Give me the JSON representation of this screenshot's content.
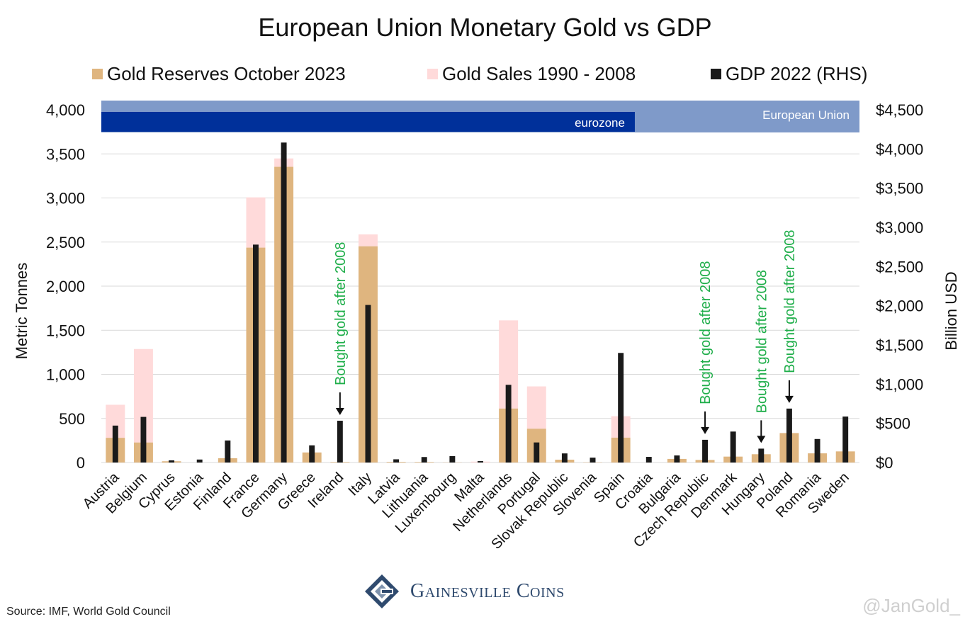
{
  "chart_data": {
    "type": "bar",
    "title": "European Union Monetary Gold vs GDP",
    "ylabel": "Metric Tonnes",
    "y2label": "Billion USD",
    "ylim": [
      0,
      4000
    ],
    "y2lim": [
      0,
      4500
    ],
    "yticks": [
      "0",
      "500",
      "1,000",
      "1,500",
      "2,000",
      "2,500",
      "3,000",
      "3,500",
      "4,000"
    ],
    "y2ticks": [
      "$0",
      "$500",
      "$1,000",
      "$1,500",
      "$2,000",
      "$2,500",
      "$3,000",
      "$3,500",
      "$4,000",
      "$4,500"
    ],
    "categories": [
      "Austria",
      "Belgium",
      "Cyprus",
      "Estonia",
      "Finland",
      "France",
      "Germany",
      "Greece",
      "Ireland",
      "Italy",
      "Latvia",
      "Lithuania",
      "Luxembourg",
      "Malta",
      "Netherlands",
      "Portugal",
      "Slovak Republic",
      "Slovenia",
      "Spain",
      "Croatia",
      "Bulgaria",
      "Czech Republic",
      "Denmark",
      "Hungary",
      "Poland",
      "Romania",
      "Sweden"
    ],
    "series": [
      {
        "name": "Gold Reserves October 2023",
        "color": "#dfb57f",
        "axis": "left",
        "values": [
          280,
          227,
          14,
          0,
          49,
          2437,
          3353,
          114,
          6,
          2452,
          7,
          6,
          2,
          0,
          612,
          383,
          32,
          3,
          282,
          0,
          41,
          29,
          67,
          94,
          334,
          104,
          126
        ]
      },
      {
        "name": "Gold Sales 1990 - 2008",
        "color": "#ffdada",
        "axis": "left",
        "values": [
          375,
          1060,
          0,
          0,
          0,
          570,
          95,
          0,
          0,
          135,
          0,
          0,
          0,
          10,
          1000,
          480,
          0,
          0,
          243,
          0,
          0,
          0,
          0,
          0,
          0,
          0,
          0
        ]
      },
      {
        "name": "GDP 2022 (RHS)",
        "color": "#1a1a1a",
        "axis": "right",
        "values": [
          471,
          582,
          28,
          38,
          281,
          2780,
          4082,
          219,
          533,
          2010,
          41,
          70,
          82,
          18,
          991,
          256,
          116,
          62,
          1398,
          72,
          90,
          290,
          395,
          177,
          688,
          300,
          586
        ]
      }
    ],
    "bands": [
      {
        "label": "European Union",
        "color": "#7f9ac9",
        "range": [
          "Austria",
          "Sweden"
        ]
      },
      {
        "label": "eurozone",
        "color": "#00309a",
        "range": [
          "Austria",
          "Spain"
        ]
      }
    ],
    "annotations": [
      {
        "category": "Ireland",
        "text": "Bought gold after 2008",
        "color": "#1fae4a"
      },
      {
        "category": "Czech Republic",
        "text": "Bought gold after 2008",
        "color": "#1fae4a"
      },
      {
        "category": "Hungary",
        "text": "Bought gold after 2008",
        "color": "#1fae4a"
      },
      {
        "category": "Poland",
        "text": "Bought gold after 2008",
        "color": "#1fae4a"
      }
    ],
    "grid": true,
    "legend_position": "top"
  },
  "source": "Source: IMF, World Gold Council",
  "brand": {
    "name": "Gainesville Coins",
    "icon": "gainesville-logo-icon"
  },
  "watermark": "@JanGold_"
}
